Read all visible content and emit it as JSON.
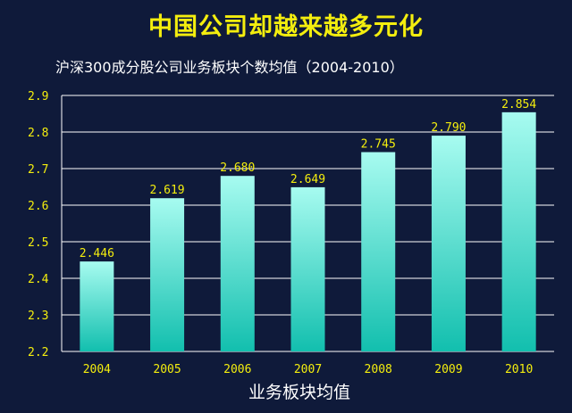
{
  "headline": "中国公司却越来越多元化",
  "chart_data": {
    "type": "bar",
    "title": "沪深300成分股公司业务板块个数均值（2004-2010）",
    "categories": [
      "2004",
      "2005",
      "2006",
      "2007",
      "2008",
      "2009",
      "2010"
    ],
    "values": [
      2.446,
      2.619,
      2.68,
      2.649,
      2.745,
      2.79,
      2.854
    ],
    "value_labels": [
      "2.446",
      "2.619",
      "2.680",
      "2.649",
      "2.745",
      "2.790",
      "2.854"
    ],
    "xlabel": "业务板块均值",
    "ylabel": "",
    "ylim": [
      2.2,
      2.9
    ],
    "yticks": [
      "2.2",
      "2.3",
      "2.4",
      "2.5",
      "2.6",
      "2.7",
      "2.8",
      "2.9"
    ],
    "grid": true,
    "colors": {
      "bar_top": "#a7fbf0",
      "bar_bottom": "#12bfae",
      "text": "#f4ee0e"
    }
  }
}
